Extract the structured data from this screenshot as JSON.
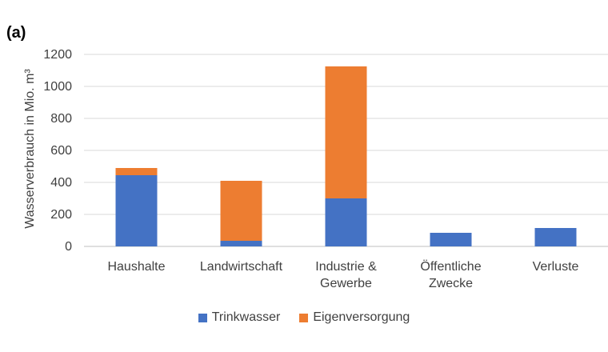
{
  "panel_label": "(a)",
  "chart_data": {
    "type": "bar",
    "stacked": true,
    "categories": [
      [
        "Haushalte"
      ],
      [
        "Landwirtschaft"
      ],
      [
        "Industrie &",
        "Gewerbe"
      ],
      [
        "Öffentliche",
        "Zwecke"
      ],
      [
        "Verluste"
      ]
    ],
    "series": [
      {
        "name": "Trinkwasser",
        "color": "#4472C4",
        "values": [
          445,
          35,
          300,
          85,
          115
        ]
      },
      {
        "name": "Eigenversorgung",
        "color": "#ED7D31",
        "values": [
          45,
          375,
          825,
          0,
          0
        ]
      }
    ],
    "ylabel": "Wasserverbrauch in Mio. m³",
    "xlabel": "",
    "ylim": [
      0,
      1200
    ],
    "yticks": [
      0,
      200,
      400,
      600,
      800,
      1000,
      1200
    ],
    "grid": true,
    "legend_position": "bottom"
  }
}
